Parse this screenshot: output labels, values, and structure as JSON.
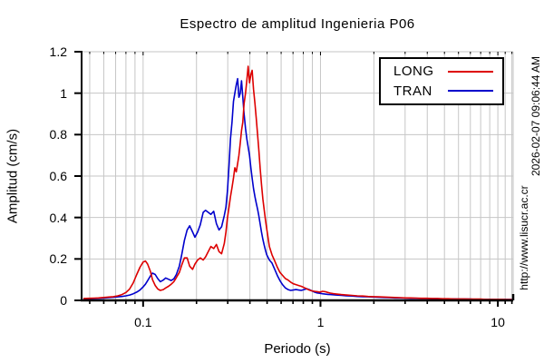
{
  "annotations": {
    "timestamp": "2026-02-07 09:06:44 AM",
    "url": "http://www.lisucr.ac.cr"
  },
  "colors": {
    "long": "#dd0000",
    "tran": "#0000cc",
    "grid": "#c6c6c6",
    "axis": "#000000"
  },
  "chart_data": {
    "type": "line",
    "title": "Espectro de amplitud Ingenieria P06",
    "xlabel": "Periodo (s)",
    "ylabel": "Amplitud (cm/s)",
    "xscale": "log",
    "xlim": [
      0.045,
      12.2
    ],
    "ylim": [
      0,
      1.2
    ],
    "grid": true,
    "legend_position": "top-right",
    "xticks": {
      "values": [
        0.1,
        1,
        10
      ],
      "labels": [
        "0.1",
        "1",
        "10"
      ]
    },
    "yticks": {
      "values": [
        0,
        0.2,
        0.4,
        0.6,
        0.8,
        1,
        1.2
      ],
      "labels": [
        "0",
        "0.2",
        "0.4",
        "0.6",
        "0.8",
        "1",
        "1.2"
      ]
    },
    "minor_xticks_extra": [
      11,
      12
    ],
    "x_periods": [
      0.046,
      0.05,
      0.053,
      0.056,
      0.06,
      0.064,
      0.068,
      0.072,
      0.076,
      0.08,
      0.084,
      0.088,
      0.092,
      0.096,
      0.1,
      0.103,
      0.106,
      0.11,
      0.113,
      0.117,
      0.121,
      0.125,
      0.13,
      0.134,
      0.139,
      0.144,
      0.149,
      0.154,
      0.16,
      0.165,
      0.171,
      0.177,
      0.183,
      0.19,
      0.196,
      0.203,
      0.21,
      0.218,
      0.225,
      0.233,
      0.241,
      0.25,
      0.259,
      0.268,
      0.277,
      0.287,
      0.293,
      0.299,
      0.305,
      0.311,
      0.317,
      0.323,
      0.329,
      0.335,
      0.341,
      0.347,
      0.353,
      0.359,
      0.365,
      0.371,
      0.378,
      0.384,
      0.391,
      0.398,
      0.405,
      0.412,
      0.419,
      0.427,
      0.434,
      0.442,
      0.449,
      0.457,
      0.465,
      0.473,
      0.481,
      0.49,
      0.498,
      0.515,
      0.533,
      0.552,
      0.571,
      0.591,
      0.612,
      0.634,
      0.656,
      0.679,
      0.703,
      0.727,
      0.753,
      0.779,
      0.807,
      0.835,
      0.864,
      0.895,
      0.926,
      0.959,
      0.992,
      1.027,
      1.063,
      1.1,
      1.139,
      1.179,
      1.22,
      1.31,
      1.404,
      1.505,
      1.613,
      1.729,
      1.853,
      1.986,
      2.129,
      2.282,
      2.446,
      2.622,
      2.81,
      3.012,
      3.228,
      3.46,
      3.709,
      3.975,
      4.261,
      4.567,
      4.895,
      5.247,
      5.624,
      6.028,
      6.461,
      6.925,
      7.423,
      7.956,
      8.528,
      9.141,
      9.798,
      10.5,
      11.26,
      12.0
    ],
    "series": [
      {
        "name": "LONG",
        "color": "#dd0000",
        "values": [
          0.009,
          0.01,
          0.011,
          0.012,
          0.014,
          0.016,
          0.018,
          0.022,
          0.028,
          0.038,
          0.055,
          0.085,
          0.125,
          0.16,
          0.185,
          0.19,
          0.175,
          0.14,
          0.1,
          0.072,
          0.055,
          0.048,
          0.052,
          0.06,
          0.068,
          0.078,
          0.09,
          0.11,
          0.135,
          0.17,
          0.205,
          0.205,
          0.165,
          0.15,
          0.175,
          0.195,
          0.205,
          0.195,
          0.21,
          0.235,
          0.26,
          0.25,
          0.27,
          0.235,
          0.225,
          0.275,
          0.33,
          0.4,
          0.45,
          0.5,
          0.545,
          0.59,
          0.64,
          0.62,
          0.66,
          0.7,
          0.76,
          0.82,
          0.86,
          0.95,
          1.0,
          1.06,
          1.13,
          1.05,
          1.09,
          1.11,
          1.02,
          0.95,
          0.88,
          0.8,
          0.73,
          0.64,
          0.56,
          0.49,
          0.44,
          0.385,
          0.345,
          0.26,
          0.22,
          0.19,
          0.16,
          0.135,
          0.12,
          0.105,
          0.098,
          0.088,
          0.08,
          0.076,
          0.072,
          0.068,
          0.062,
          0.056,
          0.05,
          0.046,
          0.044,
          0.042,
          0.04,
          0.044,
          0.042,
          0.038,
          0.035,
          0.033,
          0.031,
          0.028,
          0.026,
          0.024,
          0.022,
          0.021,
          0.019,
          0.018,
          0.017,
          0.016,
          0.015,
          0.014,
          0.013,
          0.012,
          0.012,
          0.011,
          0.01,
          0.01,
          0.009,
          0.009,
          0.008,
          0.008,
          0.007,
          0.007,
          0.007,
          0.006,
          0.006,
          0.006,
          0.005,
          0.005,
          0.005,
          0.005,
          0.004,
          0.004
        ]
      },
      {
        "name": "TRAN",
        "color": "#0000cc",
        "values": [
          0.007,
          0.008,
          0.009,
          0.01,
          0.011,
          0.013,
          0.015,
          0.017,
          0.019,
          0.022,
          0.026,
          0.032,
          0.04,
          0.05,
          0.065,
          0.078,
          0.095,
          0.118,
          0.132,
          0.125,
          0.105,
          0.09,
          0.098,
          0.108,
          0.102,
          0.096,
          0.104,
          0.125,
          0.165,
          0.22,
          0.29,
          0.34,
          0.36,
          0.33,
          0.305,
          0.33,
          0.365,
          0.425,
          0.435,
          0.425,
          0.415,
          0.43,
          0.37,
          0.34,
          0.355,
          0.41,
          0.45,
          0.53,
          0.65,
          0.78,
          0.86,
          0.96,
          1.0,
          1.04,
          1.07,
          0.98,
          1.0,
          1.06,
          0.98,
          0.9,
          0.83,
          0.78,
          0.74,
          0.7,
          0.64,
          0.59,
          0.54,
          0.5,
          0.47,
          0.44,
          0.41,
          0.37,
          0.33,
          0.295,
          0.268,
          0.24,
          0.22,
          0.195,
          0.18,
          0.15,
          0.12,
          0.095,
          0.075,
          0.06,
          0.052,
          0.048,
          0.05,
          0.052,
          0.05,
          0.048,
          0.052,
          0.056,
          0.052,
          0.046,
          0.04,
          0.036,
          0.034,
          0.032,
          0.03,
          0.029,
          0.028,
          0.027,
          0.026,
          0.024,
          0.022,
          0.021,
          0.019,
          0.018,
          0.017,
          0.016,
          0.015,
          0.014,
          0.013,
          0.012,
          0.012,
          0.011,
          0.01,
          0.01,
          0.009,
          0.009,
          0.008,
          0.008,
          0.007,
          0.007,
          0.007,
          0.006,
          0.006,
          0.006,
          0.005,
          0.005,
          0.005,
          0.005,
          0.004,
          0.004,
          0.004,
          0.004
        ]
      }
    ]
  }
}
